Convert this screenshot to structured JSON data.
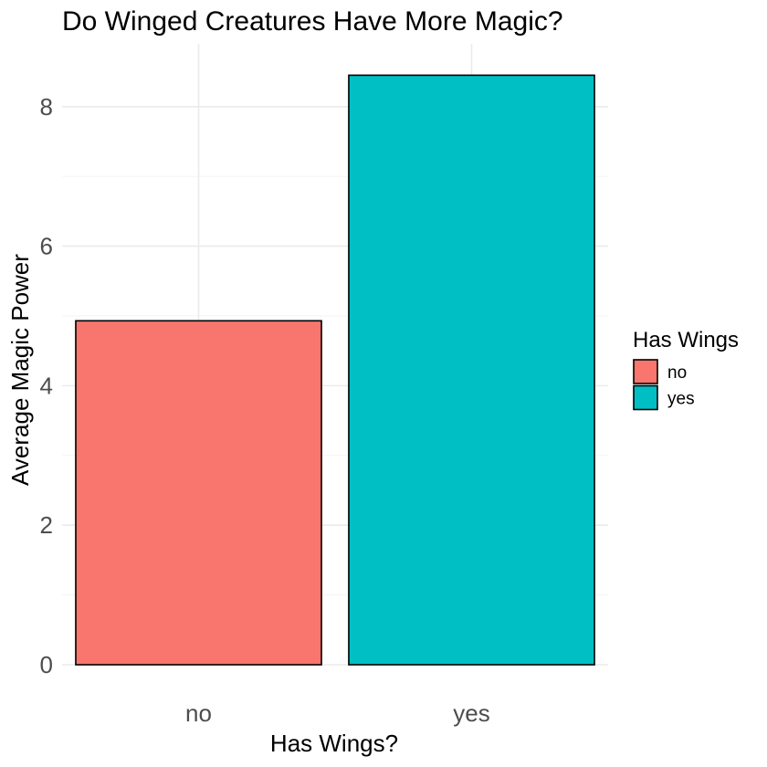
{
  "chart_data": {
    "type": "bar",
    "title": "Do Winged Creatures Have More Magic?",
    "xlabel": "Has Wings?",
    "ylabel": "Average Magic Power",
    "categories": [
      "no",
      "yes"
    ],
    "values": [
      4.93,
      8.45
    ],
    "ylim": [
      0,
      8.9
    ],
    "yticks": [
      0,
      2,
      4,
      6,
      8
    ],
    "grid": true,
    "colors": {
      "no": "#F8766D",
      "yes": "#00BFC4"
    },
    "legend": {
      "title": "Has Wings",
      "placement": "right",
      "entries": [
        "no",
        "yes"
      ]
    }
  }
}
